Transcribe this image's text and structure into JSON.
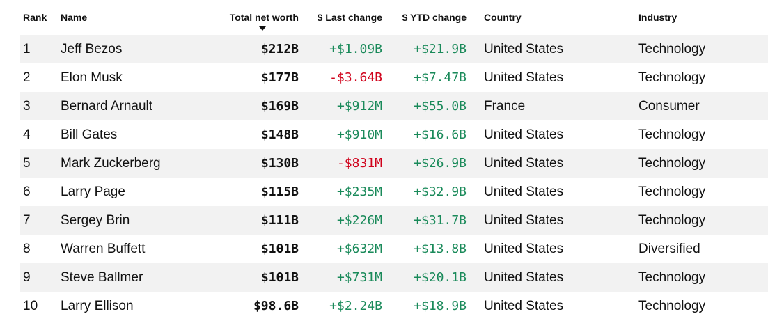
{
  "headers": {
    "rank": "Rank",
    "name": "Name",
    "worth": "Total net worth",
    "last": "$ Last change",
    "ytd": "$ YTD change",
    "country": "Country",
    "industry": "Industry"
  },
  "sort": {
    "column": "Total net worth",
    "direction": "descending",
    "icon": "sort-down-icon"
  },
  "colors": {
    "positive": "#1a8a5a",
    "negative": "#d0021b",
    "row_shade": "#f2f2f2"
  },
  "rows": [
    {
      "rank": "1",
      "name": "Jeff Bezos",
      "worth": "$212B",
      "last": "+$1.09B",
      "last_dir": "pos",
      "ytd": "+$21.9B",
      "ytd_dir": "pos",
      "country": "United States",
      "industry": "Technology"
    },
    {
      "rank": "2",
      "name": "Elon Musk",
      "worth": "$177B",
      "last": "-$3.64B",
      "last_dir": "neg",
      "ytd": "+$7.47B",
      "ytd_dir": "pos",
      "country": "United States",
      "industry": "Technology"
    },
    {
      "rank": "3",
      "name": "Bernard Arnault",
      "worth": "$169B",
      "last": "+$912M",
      "last_dir": "pos",
      "ytd": "+$55.0B",
      "ytd_dir": "pos",
      "country": "France",
      "industry": "Consumer"
    },
    {
      "rank": "4",
      "name": "Bill Gates",
      "worth": "$148B",
      "last": "+$910M",
      "last_dir": "pos",
      "ytd": "+$16.6B",
      "ytd_dir": "pos",
      "country": "United States",
      "industry": "Technology"
    },
    {
      "rank": "5",
      "name": "Mark Zuckerberg",
      "worth": "$130B",
      "last": "-$831M",
      "last_dir": "neg",
      "ytd": "+$26.9B",
      "ytd_dir": "pos",
      "country": "United States",
      "industry": "Technology"
    },
    {
      "rank": "6",
      "name": "Larry Page",
      "worth": "$115B",
      "last": "+$235M",
      "last_dir": "pos",
      "ytd": "+$32.9B",
      "ytd_dir": "pos",
      "country": "United States",
      "industry": "Technology"
    },
    {
      "rank": "7",
      "name": "Sergey Brin",
      "worth": "$111B",
      "last": "+$226M",
      "last_dir": "pos",
      "ytd": "+$31.7B",
      "ytd_dir": "pos",
      "country": "United States",
      "industry": "Technology"
    },
    {
      "rank": "8",
      "name": "Warren Buffett",
      "worth": "$101B",
      "last": "+$632M",
      "last_dir": "pos",
      "ytd": "+$13.8B",
      "ytd_dir": "pos",
      "country": "United States",
      "industry": "Diversified"
    },
    {
      "rank": "9",
      "name": "Steve Ballmer",
      "worth": "$101B",
      "last": "+$731M",
      "last_dir": "pos",
      "ytd": "+$20.1B",
      "ytd_dir": "pos",
      "country": "United States",
      "industry": "Technology"
    },
    {
      "rank": "10",
      "name": "Larry Ellison",
      "worth": "$98.6B",
      "last": "+$2.24B",
      "last_dir": "pos",
      "ytd": "+$18.9B",
      "ytd_dir": "pos",
      "country": "United States",
      "industry": "Technology"
    }
  ]
}
